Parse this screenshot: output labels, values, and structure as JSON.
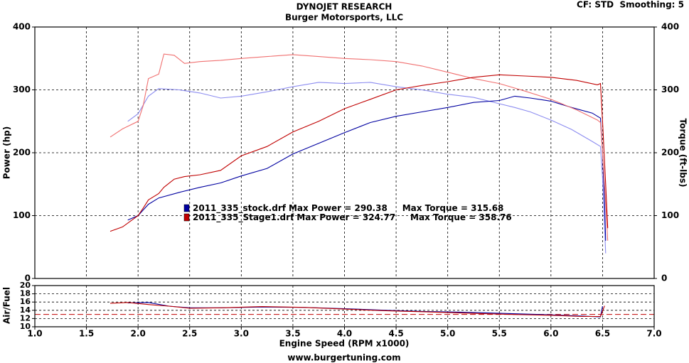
{
  "chart_data": [
    {
      "type": "line",
      "title": "DYNOJET RESEARCH",
      "subtitle": "Burger Motorsports, LLC",
      "annotation": "CF: STD  Smoothing: 5",
      "ylabel": "Power (hp)",
      "y2label": "Torque (ft-lbs)",
      "xlabel": "Engine Speed (RPM x1000)",
      "xlim": [
        1,
        7
      ],
      "xticks": [
        {
          "value": 1,
          "label": "1.0"
        },
        {
          "value": 1.5,
          "label": "1.5"
        },
        {
          "value": 2,
          "label": "2.0"
        },
        {
          "value": 2.5,
          "label": "2.5"
        },
        {
          "value": 3,
          "label": "3.0"
        },
        {
          "value": 3.5,
          "label": "3.5"
        },
        {
          "value": 4,
          "label": "4.0"
        },
        {
          "value": 4.5,
          "label": "4.5"
        },
        {
          "value": 5,
          "label": "5.0"
        },
        {
          "value": 5.5,
          "label": "5.5"
        },
        {
          "value": 6,
          "label": "6.0"
        },
        {
          "value": 6.5,
          "label": "6.5"
        },
        {
          "value": 7,
          "label": "7.0"
        }
      ],
      "ylim": [
        0,
        400
      ],
      "yticks": [
        0,
        100,
        200,
        300,
        400
      ],
      "y2lim": [
        0,
        400
      ],
      "y2ticks": [
        0,
        100,
        200,
        300,
        400
      ],
      "grid": true,
      "series": [
        {
          "name": "2011_335_stock.drf",
          "annotation": "Max Power = 290.38     Max Torque = 315.68",
          "color": "#0000a0",
          "torque_color": "#8c8cf0",
          "axis_torque": "y2",
          "x": [
            1.9,
            2.0,
            2.1,
            2.2,
            2.4,
            2.6,
            2.8,
            3.0,
            3.25,
            3.5,
            3.75,
            4.0,
            4.25,
            4.5,
            4.75,
            5.0,
            5.25,
            5.5,
            5.65,
            5.8,
            6.0,
            6.2,
            6.4,
            6.48,
            6.5,
            6.52,
            6.53
          ],
          "values": [
            93,
            100,
            118,
            128,
            137,
            145,
            152,
            163,
            175,
            198,
            215,
            232,
            248,
            258,
            265,
            272,
            280,
            283,
            290,
            287,
            282,
            272,
            263,
            255,
            200,
            120,
            60
          ],
          "torque": [
            250,
            262,
            290,
            302,
            300,
            295,
            287,
            290,
            297,
            305,
            312,
            310,
            312,
            305,
            300,
            293,
            288,
            278,
            272,
            265,
            252,
            237,
            218,
            210,
            160,
            80,
            40
          ]
        },
        {
          "name": "2011_335_Stage1.drf",
          "annotation": "Max Power = 324.77     Max Torque = 358.76",
          "color": "#c00000",
          "torque_color": "#f07070",
          "axis_torque": "y2",
          "x": [
            1.73,
            1.85,
            2.0,
            2.05,
            2.1,
            2.2,
            2.25,
            2.35,
            2.45,
            2.6,
            2.8,
            3.0,
            3.25,
            3.5,
            3.75,
            4.0,
            4.25,
            4.5,
            4.75,
            5.0,
            5.25,
            5.5,
            5.75,
            6.0,
            6.25,
            6.45,
            6.48,
            6.5,
            6.53,
            6.55
          ],
          "values": [
            75,
            82,
            100,
            112,
            125,
            135,
            145,
            158,
            162,
            165,
            172,
            195,
            210,
            233,
            250,
            270,
            285,
            300,
            307,
            313,
            320,
            324,
            322,
            320,
            315,
            308,
            310,
            250,
            150,
            80
          ],
          "torque": [
            225,
            238,
            250,
            275,
            318,
            325,
            357,
            355,
            342,
            345,
            347,
            350,
            353,
            356,
            353,
            350,
            348,
            345,
            338,
            328,
            318,
            310,
            298,
            285,
            268,
            252,
            248,
            200,
            120,
            60
          ]
        }
      ]
    },
    {
      "type": "line",
      "ylabel": "Air/Fuel",
      "xlim": [
        1,
        7
      ],
      "ylim": [
        10,
        20
      ],
      "yticks": [
        10,
        12,
        14,
        16,
        18,
        20
      ],
      "grid": true,
      "reference_line": 13,
      "reference_color": "#c00000",
      "series": [
        {
          "color": "#0000a0",
          "x": [
            1.9,
            2.1,
            2.3,
            2.5,
            2.8,
            3.2,
            3.6,
            4.0,
            4.4,
            4.8,
            5.2,
            5.6,
            6.0,
            6.3,
            6.48,
            6.5
          ],
          "values": [
            15.8,
            15.9,
            15.0,
            14.6,
            14.6,
            14.8,
            14.7,
            14.4,
            14.0,
            13.7,
            13.5,
            13.2,
            12.9,
            12.6,
            12.4,
            15.0
          ]
        },
        {
          "color": "#c00000",
          "x": [
            1.73,
            1.9,
            2.1,
            2.3,
            2.5,
            2.8,
            3.2,
            3.6,
            4.0,
            4.4,
            4.8,
            5.2,
            5.6,
            6.0,
            6.3,
            6.48,
            6.52
          ],
          "values": [
            15.7,
            15.9,
            15.4,
            15.0,
            14.5,
            14.6,
            14.9,
            14.7,
            14.3,
            13.9,
            13.6,
            13.3,
            13.0,
            12.8,
            12.5,
            12.5,
            15.1
          ]
        }
      ]
    }
  ],
  "footer": "www.burgertuning.com"
}
